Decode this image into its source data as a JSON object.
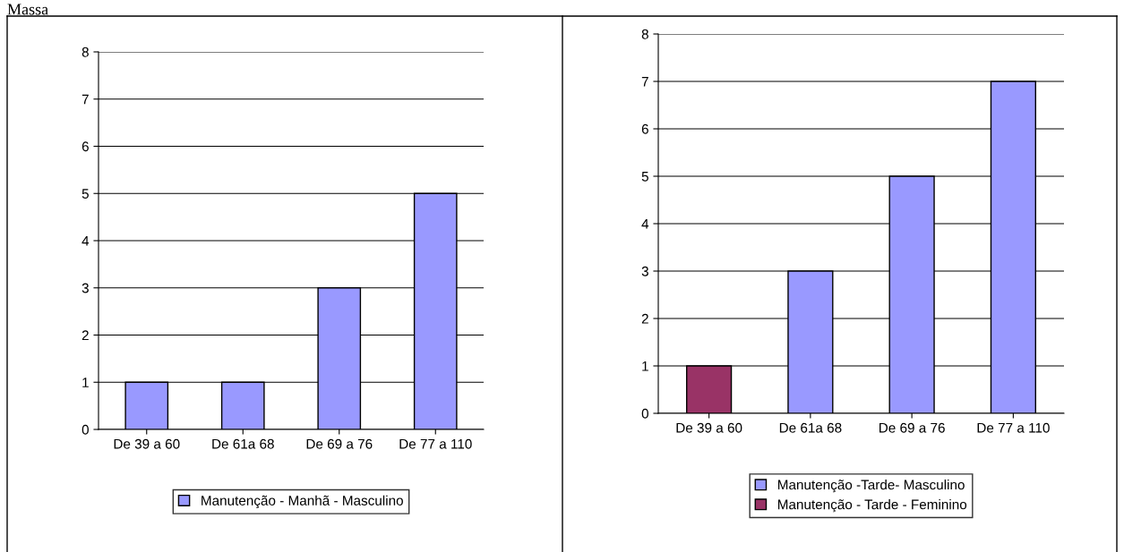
{
  "chart_data": [
    {
      "type": "bar",
      "annotations": [
        "Massa"
      ],
      "categories": [
        "De 39 a 60",
        "De 61a 68",
        "De 69 a 76",
        "De 77 a 110"
      ],
      "series": [
        {
          "name": "Manutenção - Manhã - Masculino",
          "color": "#9999ff",
          "values": [
            1,
            1,
            3,
            5
          ]
        }
      ],
      "ylim": [
        0,
        8
      ],
      "yticks": [
        0,
        1,
        2,
        3,
        4,
        5,
        6,
        7,
        8
      ],
      "grid": "y",
      "legend": "bottom"
    },
    {
      "type": "bar",
      "categories": [
        "De 39 a 60",
        "De 61a 68",
        "De 69 a 76",
        "De 77 a 110"
      ],
      "series": [
        {
          "name": "Manutenção -Tarde- Masculino",
          "color": "#9999ff",
          "values": [
            null,
            3,
            5,
            7
          ]
        },
        {
          "name": "Manutenção - Tarde - Feminino",
          "color": "#993366",
          "values": [
            1,
            null,
            null,
            null
          ]
        }
      ],
      "ylim": [
        0,
        8
      ],
      "yticks": [
        0,
        1,
        2,
        3,
        4,
        5,
        6,
        7,
        8
      ],
      "grid": "y",
      "legend": "bottom"
    }
  ]
}
